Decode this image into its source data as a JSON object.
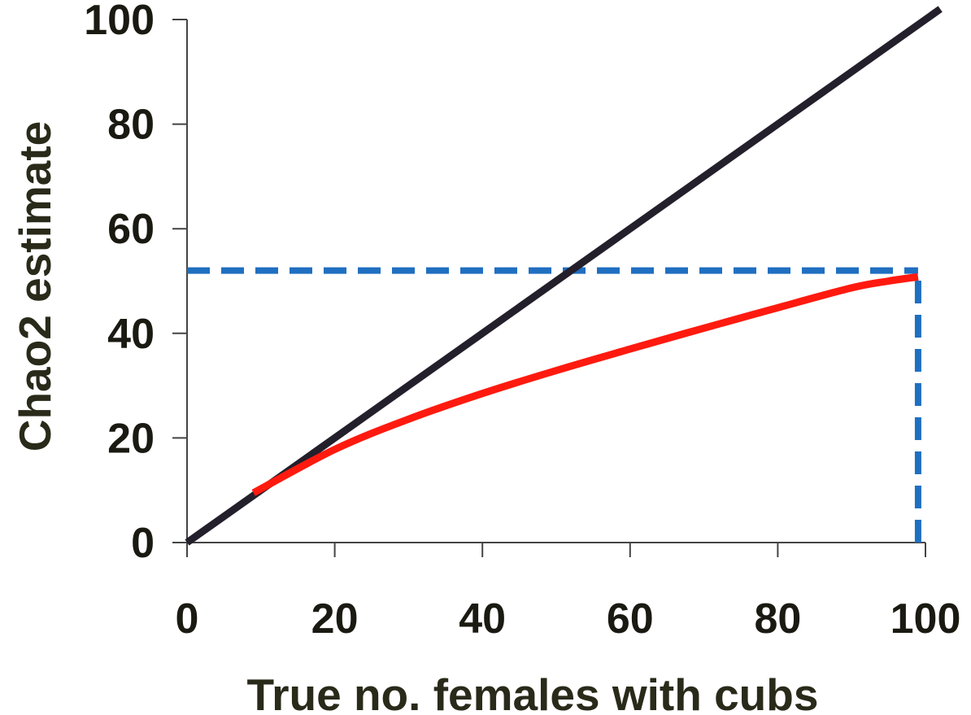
{
  "chart_data": {
    "type": "line",
    "title": "",
    "xlabel": "True no. females with cubs",
    "ylabel": "Chao2 estimate",
    "xlim": [
      0,
      100
    ],
    "ylim": [
      0,
      100
    ],
    "xticks": [
      0,
      20,
      40,
      60,
      80,
      100
    ],
    "yticks": [
      0,
      20,
      40,
      60,
      80,
      100
    ],
    "grid": false,
    "legend": "none",
    "series": [
      {
        "color": "#231f2b",
        "style": "solid",
        "x": [
          0,
          102
        ],
        "y": [
          0,
          102
        ]
      },
      {
        "color": "#ff1a0f",
        "style": "solid",
        "x": [
          9,
          20,
          30,
          40,
          50,
          60,
          70,
          80,
          90,
          95,
          99
        ],
        "y": [
          9.5,
          17.8,
          23.6,
          28.5,
          32.9,
          37.0,
          41.0,
          44.9,
          48.7,
          50.0,
          50.8
        ]
      }
    ],
    "reference_lines": [
      {
        "orientation": "horizontal",
        "value": 52,
        "from": 0,
        "to": 99,
        "color": "#1f6fc1",
        "style": "dashed"
      },
      {
        "orientation": "vertical",
        "value": 99,
        "from": 0,
        "to": 52,
        "color": "#1f6fc1",
        "style": "dashed"
      }
    ]
  }
}
